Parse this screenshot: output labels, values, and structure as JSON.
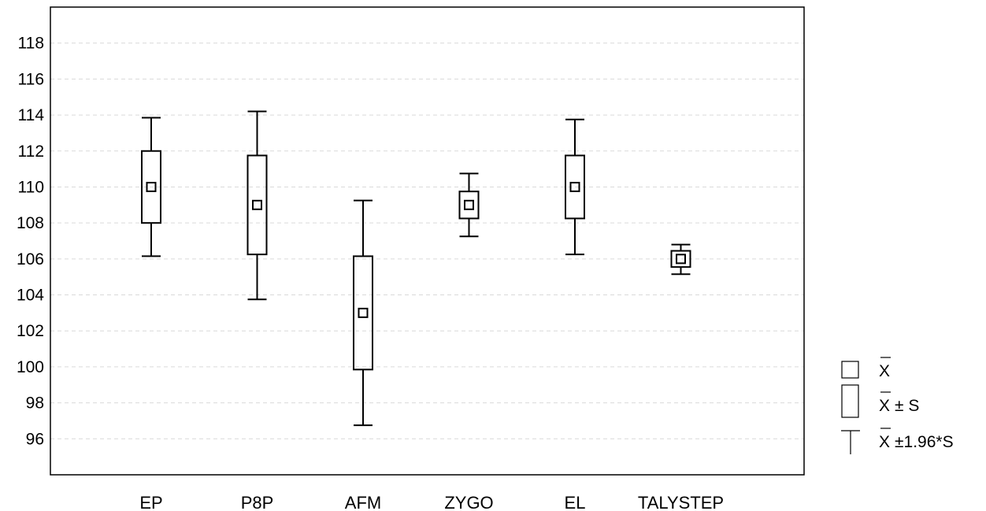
{
  "chart_data": {
    "type": "box",
    "title": "",
    "xlabel": "",
    "ylabel": "",
    "ylim": [
      94,
      120
    ],
    "yticks": [
      96,
      98,
      100,
      102,
      104,
      106,
      108,
      110,
      112,
      114,
      116,
      118
    ],
    "grid": true,
    "legend_position": "bottom-right",
    "categories": [
      "EP",
      "P8P",
      "AFM",
      "ZYGO",
      "EL",
      "TALYSTEP"
    ],
    "series": [
      {
        "category": "EP",
        "mean": 110.0,
        "minus_s": 108.0,
        "plus_s": 112.0,
        "minus_196s": 106.15,
        "plus_196s": 113.85
      },
      {
        "category": "P8P",
        "mean": 109.0,
        "minus_s": 106.25,
        "plus_s": 111.75,
        "minus_196s": 103.75,
        "plus_196s": 114.2
      },
      {
        "category": "AFM",
        "mean": 103.0,
        "minus_s": 99.85,
        "plus_s": 106.15,
        "minus_196s": 96.75,
        "plus_196s": 109.25
      },
      {
        "category": "ZYGO",
        "mean": 109.0,
        "minus_s": 108.25,
        "plus_s": 109.75,
        "minus_196s": 107.25,
        "plus_196s": 110.75
      },
      {
        "category": "EL",
        "mean": 110.0,
        "minus_s": 108.25,
        "plus_s": 111.75,
        "minus_196s": 106.25,
        "plus_196s": 113.75
      },
      {
        "category": "TALYSTEP",
        "mean": 106.0,
        "minus_s": 105.55,
        "plus_s": 106.45,
        "minus_196s": 105.15,
        "plus_196s": 106.8
      }
    ],
    "legend": [
      {
        "symbol": "mean",
        "x_label": "X",
        "suffix": ""
      },
      {
        "symbol": "box",
        "x_label": "X",
        "suffix": "± S"
      },
      {
        "symbol": "whisker",
        "x_label": "X",
        "suffix": "±1.96*S"
      }
    ]
  }
}
